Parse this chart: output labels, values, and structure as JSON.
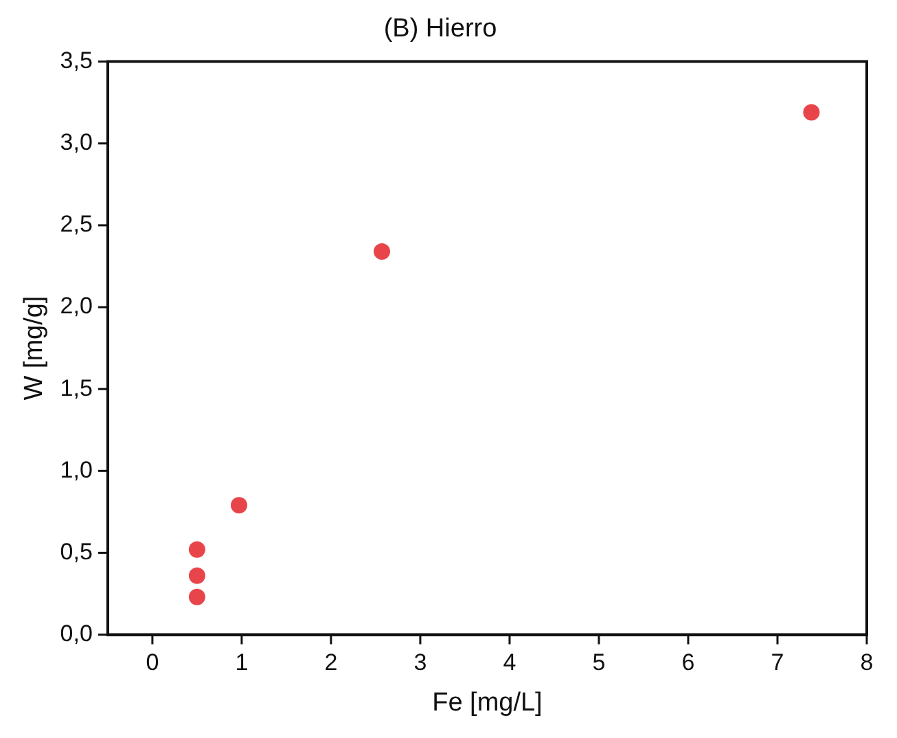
{
  "chart_data": {
    "type": "scatter",
    "title": "(B) Hierro",
    "xlabel": "Fe [mg/L]",
    "ylabel": "W [mg/g]",
    "x": [
      0.5,
      0.5,
      0.5,
      0.97,
      2.57,
      7.38
    ],
    "series": [
      {
        "color": "#e8454a",
        "values": [
          0.52,
          0.36,
          0.23,
          0.79,
          2.34,
          3.19
        ]
      }
    ],
    "xlim": [
      -0.5,
      8
    ],
    "xticks": [
      0,
      1,
      2,
      3,
      4,
      5,
      6,
      7,
      8
    ],
    "ylim": [
      0,
      3.5
    ],
    "yticks": [
      {
        "value": 0,
        "label": "0,0"
      },
      {
        "value": 0.5,
        "label": "0,5"
      },
      {
        "value": 1,
        "label": "1,0"
      },
      {
        "value": 1.5,
        "label": "1,5"
      },
      {
        "value": 2,
        "label": "2,0"
      },
      {
        "value": 2.5,
        "label": "2,5"
      },
      {
        "value": 3,
        "label": "3,0"
      },
      {
        "value": 3.5,
        "label": "3,5"
      }
    ],
    "grid": false,
    "legend": false,
    "marker": "circle"
  }
}
